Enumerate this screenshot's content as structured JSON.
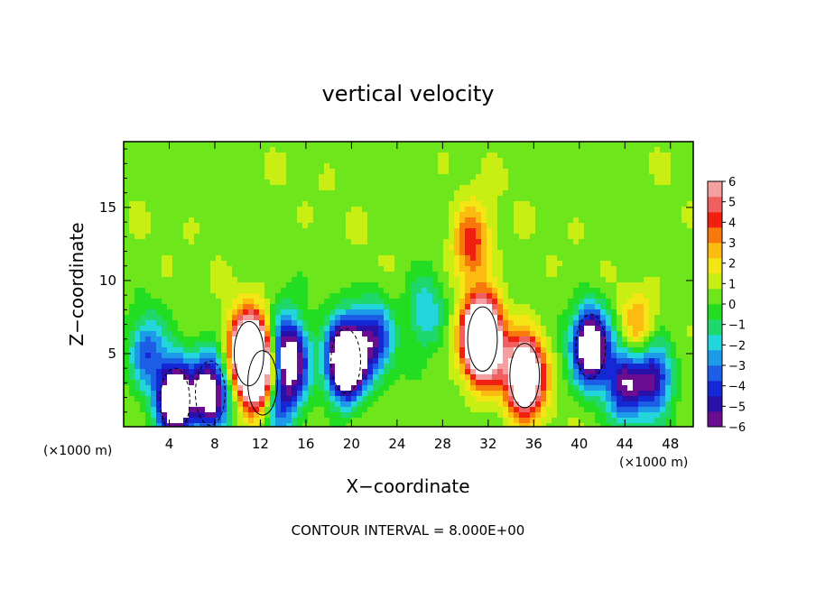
{
  "chart_data": {
    "type": "heatmap",
    "title": "vertical velocity",
    "xlabel": "X−coordinate",
    "ylabel": "Z−coordinate",
    "x_unit_left": "(×1000 m)",
    "x_unit_right": "(×1000 m)",
    "footer": "CONTOUR INTERVAL = 8.000E+00",
    "xlim": [
      0,
      50
    ],
    "ylim": [
      0,
      19.5
    ],
    "x_ticks": [
      4,
      8,
      12,
      16,
      20,
      24,
      28,
      32,
      36,
      40,
      44,
      48
    ],
    "y_ticks": [
      5,
      10,
      15
    ],
    "colorbar": {
      "ticks": [
        "6",
        "5",
        "4",
        "3",
        "2",
        "1",
        "0",
        "−1",
        "−2",
        "−3",
        "−4",
        "−5",
        "−6"
      ],
      "range": [
        -6,
        6
      ],
      "colors": [
        "#6a0d91",
        "#2a0fa8",
        "#1428d6",
        "#1c5ee6",
        "#1e9be8",
        "#22d6dc",
        "#1ed86e",
        "#22dd22",
        "#6ee61c",
        "#c8ee14",
        "#f4e614",
        "#fcbb10",
        "#f8780c",
        "#f02010",
        "#f06060",
        "#f4a0a0"
      ]
    },
    "grid": false,
    "features": [
      {
        "x": 4.5,
        "z": 1.8,
        "w": -10
      },
      {
        "x": 7.6,
        "z": 2.3,
        "w": -8
      },
      {
        "x": 11.0,
        "z": 5.0,
        "w": 12
      },
      {
        "x": 12.2,
        "z": 3.0,
        "w": 8
      },
      {
        "x": 13.3,
        "z": 2.0,
        "w": -6
      },
      {
        "x": 14.2,
        "z": 5.5,
        "w": -5
      },
      {
        "x": 15.0,
        "z": 4.0,
        "w": -4
      },
      {
        "x": 19.5,
        "z": 4.5,
        "w": -12
      },
      {
        "x": 22.0,
        "z": 6.0,
        "w": -5
      },
      {
        "x": 31.5,
        "z": 6.0,
        "w": 14
      },
      {
        "x": 30.5,
        "z": 12.5,
        "w": 4
      },
      {
        "x": 35.2,
        "z": 3.5,
        "w": 10
      },
      {
        "x": 41.0,
        "z": 5.5,
        "w": -9
      },
      {
        "x": 44.0,
        "z": 3.0,
        "w": -6
      },
      {
        "x": 46.5,
        "z": 3.5,
        "w": -6
      },
      {
        "x": 2.0,
        "z": 5.0,
        "w": -4
      },
      {
        "x": 26.5,
        "z": 8.0,
        "w": -3
      },
      {
        "x": 45.2,
        "z": 6.3,
        "w": 3
      }
    ]
  }
}
